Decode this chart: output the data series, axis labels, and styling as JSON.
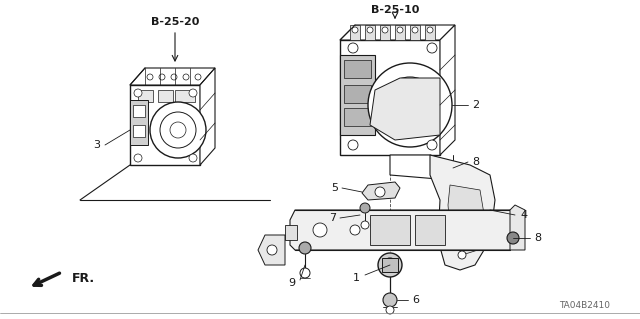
{
  "bg_color": "#ffffff",
  "line_color": "#1a1a1a",
  "label_b25_20": "B-25-20",
  "label_b25_10": "B-25-10",
  "label_ta": "TA04B2410",
  "label_fr": "FR.",
  "fig_width": 6.4,
  "fig_height": 3.19,
  "dpi": 100,
  "border_color": "#cccccc",
  "gray_fill": "#bbbbbb",
  "light_gray": "#dddddd",
  "medium_gray": "#999999"
}
